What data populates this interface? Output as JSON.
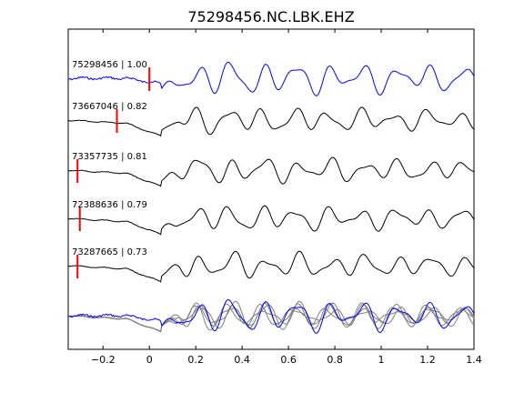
{
  "chart_data": {
    "type": "line",
    "title": "75298456.NC.LBK.EHZ",
    "xlabel": "",
    "ylabel": "",
    "xlim": [
      -0.35,
      1.4
    ],
    "xticks": [
      -0.2,
      0,
      0.2,
      0.4,
      0.6,
      0.8,
      1,
      1.2,
      1.4
    ],
    "xtick_labels": [
      "−0.2",
      "0",
      "0.2",
      "0.4",
      "0.6",
      "0.8",
      "1",
      "1.2",
      "1.4"
    ],
    "grid": false,
    "traces": [
      {
        "label": "75298456 | 1.00",
        "pick_time": 0.0,
        "color": "#0000ff"
      },
      {
        "label": "73667046 | 0.82",
        "pick_time": -0.14,
        "color": "#000000"
      },
      {
        "label": "73357735 | 0.81",
        "pick_time": -0.31,
        "color": "#000000"
      },
      {
        "label": "72388636 | 0.79",
        "pick_time": -0.3,
        "color": "#000000"
      },
      {
        "label": "73287665 | 0.73",
        "pick_time": -0.31,
        "color": "#000000"
      }
    ],
    "overlay": {
      "reference_color": "#0000ff",
      "others_color": "#808080"
    },
    "pick_color": "#ff0000"
  }
}
